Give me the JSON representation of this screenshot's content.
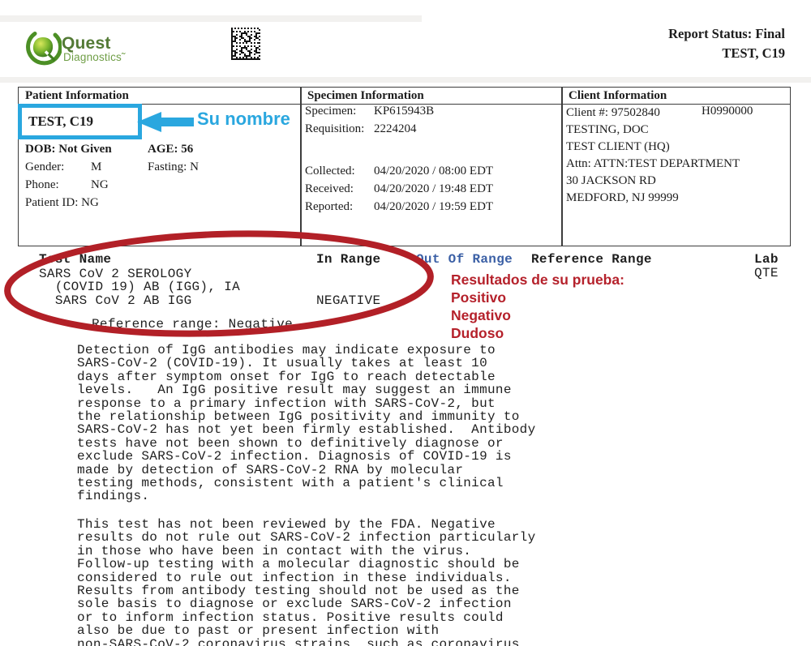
{
  "colors": {
    "highlight_blue": "#2aa7df",
    "out_of_range_blue": "#3a5fa5",
    "annotation_red": "#b5212b",
    "circle_red": "#b22027",
    "brand_green": "#537a35"
  },
  "header": {
    "brand_name": "Quest",
    "brand_sub": "Diagnostics˜",
    "report_status": "Report Status: Final",
    "report_patient": "TEST, C19"
  },
  "annotations": {
    "name_callout": "Su nombre",
    "results_title": "Resultados de su prueba:",
    "option_positive": "Positivo",
    "option_negative": "Negativo",
    "option_doubtful": "Dudoso"
  },
  "patient_info": {
    "header": "Patient Information",
    "name": "TEST, C19",
    "dob": "DOB: Not Given",
    "age": "AGE: 56",
    "gender_label": "Gender:",
    "gender_value": "M",
    "fasting": "Fasting: N",
    "phone_label": "Phone:",
    "phone_value": "NG",
    "patient_id": "Patient ID: NG"
  },
  "specimen_info": {
    "header": "Specimen Information",
    "specimen_label": "Specimen:",
    "specimen_value": "KP615943B",
    "requisition_label": "Requisition:",
    "requisition_value": "2224204",
    "collected_label": "Collected:",
    "collected_value": "04/20/2020  / 08:00 EDT",
    "received_label": "Received:",
    "received_value": "04/20/2020  / 19:48 EDT",
    "reported_label": "Reported:",
    "reported_value": "04/20/2020  / 19:59 EDT"
  },
  "client_info": {
    "header": "Client Information",
    "client_number": "Client #: 97502840",
    "client_code": "H0990000",
    "line1": "TESTING, DOC",
    "line2": "TEST CLIENT (HQ)",
    "line3": "Attn: ATTN:TEST DEPARTMENT",
    "line4": "30 JACKSON RD",
    "line5": "MEDFORD, NJ 99999"
  },
  "results": {
    "col_test_name": "Test Name",
    "col_in_range": "In Range",
    "col_out_of_range": "Out Of Range",
    "col_reference_range": "Reference Range",
    "col_lab": "Lab",
    "lab_value": "QTE",
    "test_name_block": "SARS CoV 2 SEROLOGY\n  (COVID 19) AB (IGG), IA\n  SARS CoV 2 AB IGG",
    "result_value": "NEGATIVE",
    "reference_line": "Reference range: Negative",
    "note_1": "Detection of IgG antibodies may indicate exposure to\nSARS-CoV-2 (COVID-19). It usually takes at least 10\ndays after symptom onset for IgG to reach detectable\nlevels.   An IgG positive result may suggest an immune\nresponse to a primary infection with SARS-CoV-2, but\nthe relationship between IgG positivity and immunity to\nSARS-CoV-2 has not yet been firmly established.  Antibody\ntests have not been shown to definitively diagnose or\nexclude SARS-CoV-2 infection. Diagnosis of COVID-19 is\nmade by detection of SARS-CoV-2 RNA by molecular\ntesting methods, consistent with a patient's clinical\nfindings.",
    "note_2": "This test has not been reviewed by the FDA. Negative\nresults do not rule out SARS-CoV-2 infection particularly\nin those who have been in contact with the virus.\nFollow-up testing with a molecular diagnostic should be\nconsidered to rule out infection in these individuals.\nResults from antibody testing should not be used as the\nsole basis to diagnose or exclude SARS-CoV-2 infection\nor to inform infection status. Positive results could\nalso be due to past or present infection with\nnon-SARS-CoV-2 coronavirus strains, such as coronavirus"
  }
}
